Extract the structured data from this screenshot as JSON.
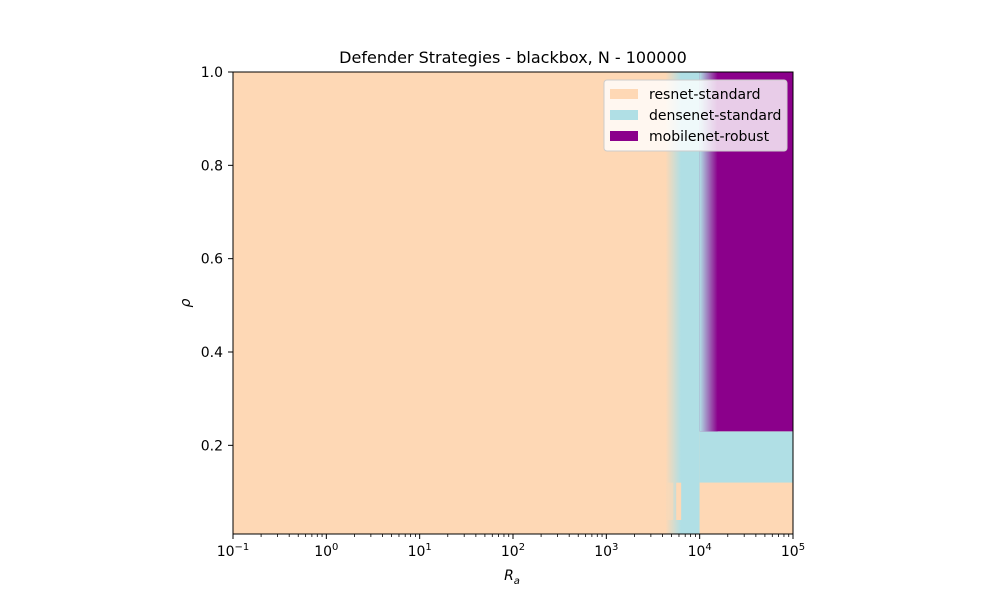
{
  "chart_data": {
    "type": "heatmap",
    "title": "Defender Strategies - blackbox, N - 100000",
    "xlabel": "R",
    "xlabel_sub": "a",
    "ylabel": "ρ",
    "xscale": "log",
    "xlim": [
      0.1,
      100000
    ],
    "ylim": [
      0.01,
      1.0
    ],
    "x_ticks": [
      {
        "value": 0.1,
        "base": "10",
        "exp": "−1"
      },
      {
        "value": 1,
        "base": "10",
        "exp": "0"
      },
      {
        "value": 10,
        "base": "10",
        "exp": "1"
      },
      {
        "value": 100,
        "base": "10",
        "exp": "2"
      },
      {
        "value": 1000,
        "base": "10",
        "exp": "3"
      },
      {
        "value": 10000,
        "base": "10",
        "exp": "4"
      },
      {
        "value": 100000,
        "base": "10",
        "exp": "5"
      }
    ],
    "y_ticks": [
      {
        "value": 0.2,
        "label": "0.2"
      },
      {
        "value": 0.4,
        "label": "0.4"
      },
      {
        "value": 0.6,
        "label": "0.6"
      },
      {
        "value": 0.8,
        "label": "0.8"
      },
      {
        "value": 1.0,
        "label": "1.0"
      }
    ],
    "legend_position": "top-right",
    "series": [
      {
        "name": "resnet-standard",
        "color": "#fed8b5"
      },
      {
        "name": "densenet-standard",
        "color": "#b0dfe5"
      },
      {
        "name": "mobilenet-robust",
        "color": "#8b008b"
      }
    ],
    "regions": [
      {
        "series": "resnet-standard",
        "x": [
          0.1,
          100000
        ],
        "y": [
          0.01,
          1.0
        ]
      },
      {
        "series": "densenet-standard",
        "x": [
          5000,
          10000
        ],
        "y": [
          0.01,
          1.0
        ]
      },
      {
        "series": "densenet-standard",
        "x": [
          10000,
          100000
        ],
        "y": [
          0.12,
          0.23
        ]
      },
      {
        "series": "mobilenet-robust",
        "x": [
          10000,
          100000
        ],
        "y": [
          0.23,
          1.0
        ]
      },
      {
        "series": "resnet-standard",
        "x": [
          10000,
          100000
        ],
        "y": [
          0.01,
          0.12
        ]
      }
    ]
  }
}
